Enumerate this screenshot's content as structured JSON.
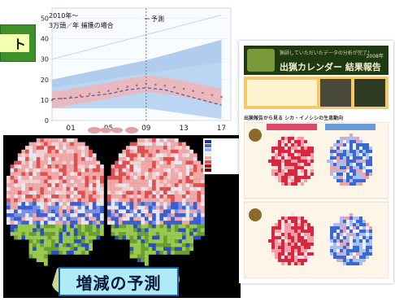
{
  "banner": {
    "text": "ト"
  },
  "chart": {
    "note_line1": "2010年～",
    "note_line2": "3万頭／年  捕獲の場合",
    "forecast_label": "予測",
    "y_ticks": [
      "50",
      "40",
      "30",
      "20",
      "10",
      "0"
    ],
    "x_ticks": [
      "01",
      "05",
      "09",
      "13",
      "17"
    ]
  },
  "chart_data": {
    "type": "area",
    "title": "",
    "xlabel": "",
    "ylabel": "",
    "x": [
      1999,
      2001,
      2003,
      2005,
      2007,
      2009,
      2011,
      2013,
      2015,
      2017
    ],
    "ylim": [
      0,
      55
    ],
    "series": [
      {
        "values": [
          10.5,
          11,
          12,
          13,
          15,
          16,
          15,
          12.5,
          10,
          7.5
        ]
      },
      {
        "values": [
          10,
          11.5,
          13,
          14.5,
          16.5,
          18,
          17,
          15.5,
          13.5,
          11.5
        ]
      }
    ],
    "forecast_start": 2009,
    "grid": true
  },
  "maps": {
    "label": "増減の予測"
  },
  "document": {
    "title": "出猟カレンダー 結果報告",
    "subtitle": "猟師していただいたデータの分析が完了！",
    "year": "2008年",
    "section": "出猟報告から見る シカ・イノシシの生息動向"
  },
  "colors": {
    "banner_green": "#3f8f2a",
    "blue_band": "#a8c8ec",
    "red_band": "#f0b4b6",
    "dots": "#c06a66",
    "trend": "#4a5a9a",
    "forecast_line": "#7a8a2a",
    "label_bg": "#aeeaf7"
  }
}
